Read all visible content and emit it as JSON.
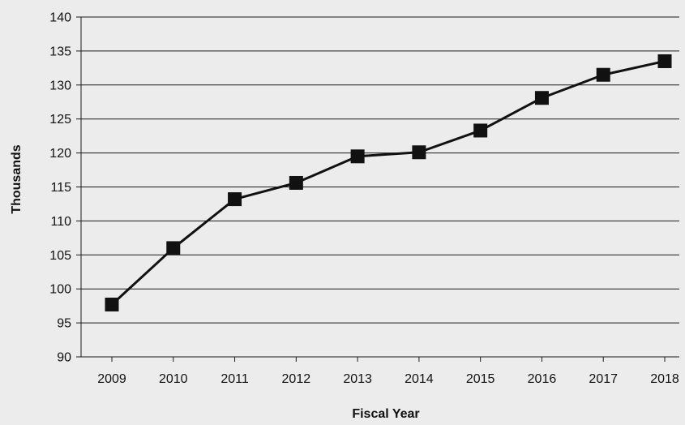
{
  "chart_data": {
    "type": "line",
    "title": "",
    "xlabel": "Fiscal Year",
    "ylabel": "Thousands",
    "categories": [
      "2009",
      "2010",
      "2011",
      "2012",
      "2013",
      "2014",
      "2015",
      "2016",
      "2017",
      "2018"
    ],
    "series": [
      {
        "values": [
          97.7,
          106.0,
          113.2,
          115.6,
          119.5,
          120.1,
          123.3,
          128.1,
          131.5,
          133.5
        ],
        "marker": "square",
        "color": "#111111"
      }
    ],
    "ylim": [
      90,
      140
    ],
    "yticks": [
      90,
      95,
      100,
      105,
      110,
      115,
      120,
      125,
      130,
      135,
      140
    ],
    "grid": true,
    "legend": "none"
  }
}
